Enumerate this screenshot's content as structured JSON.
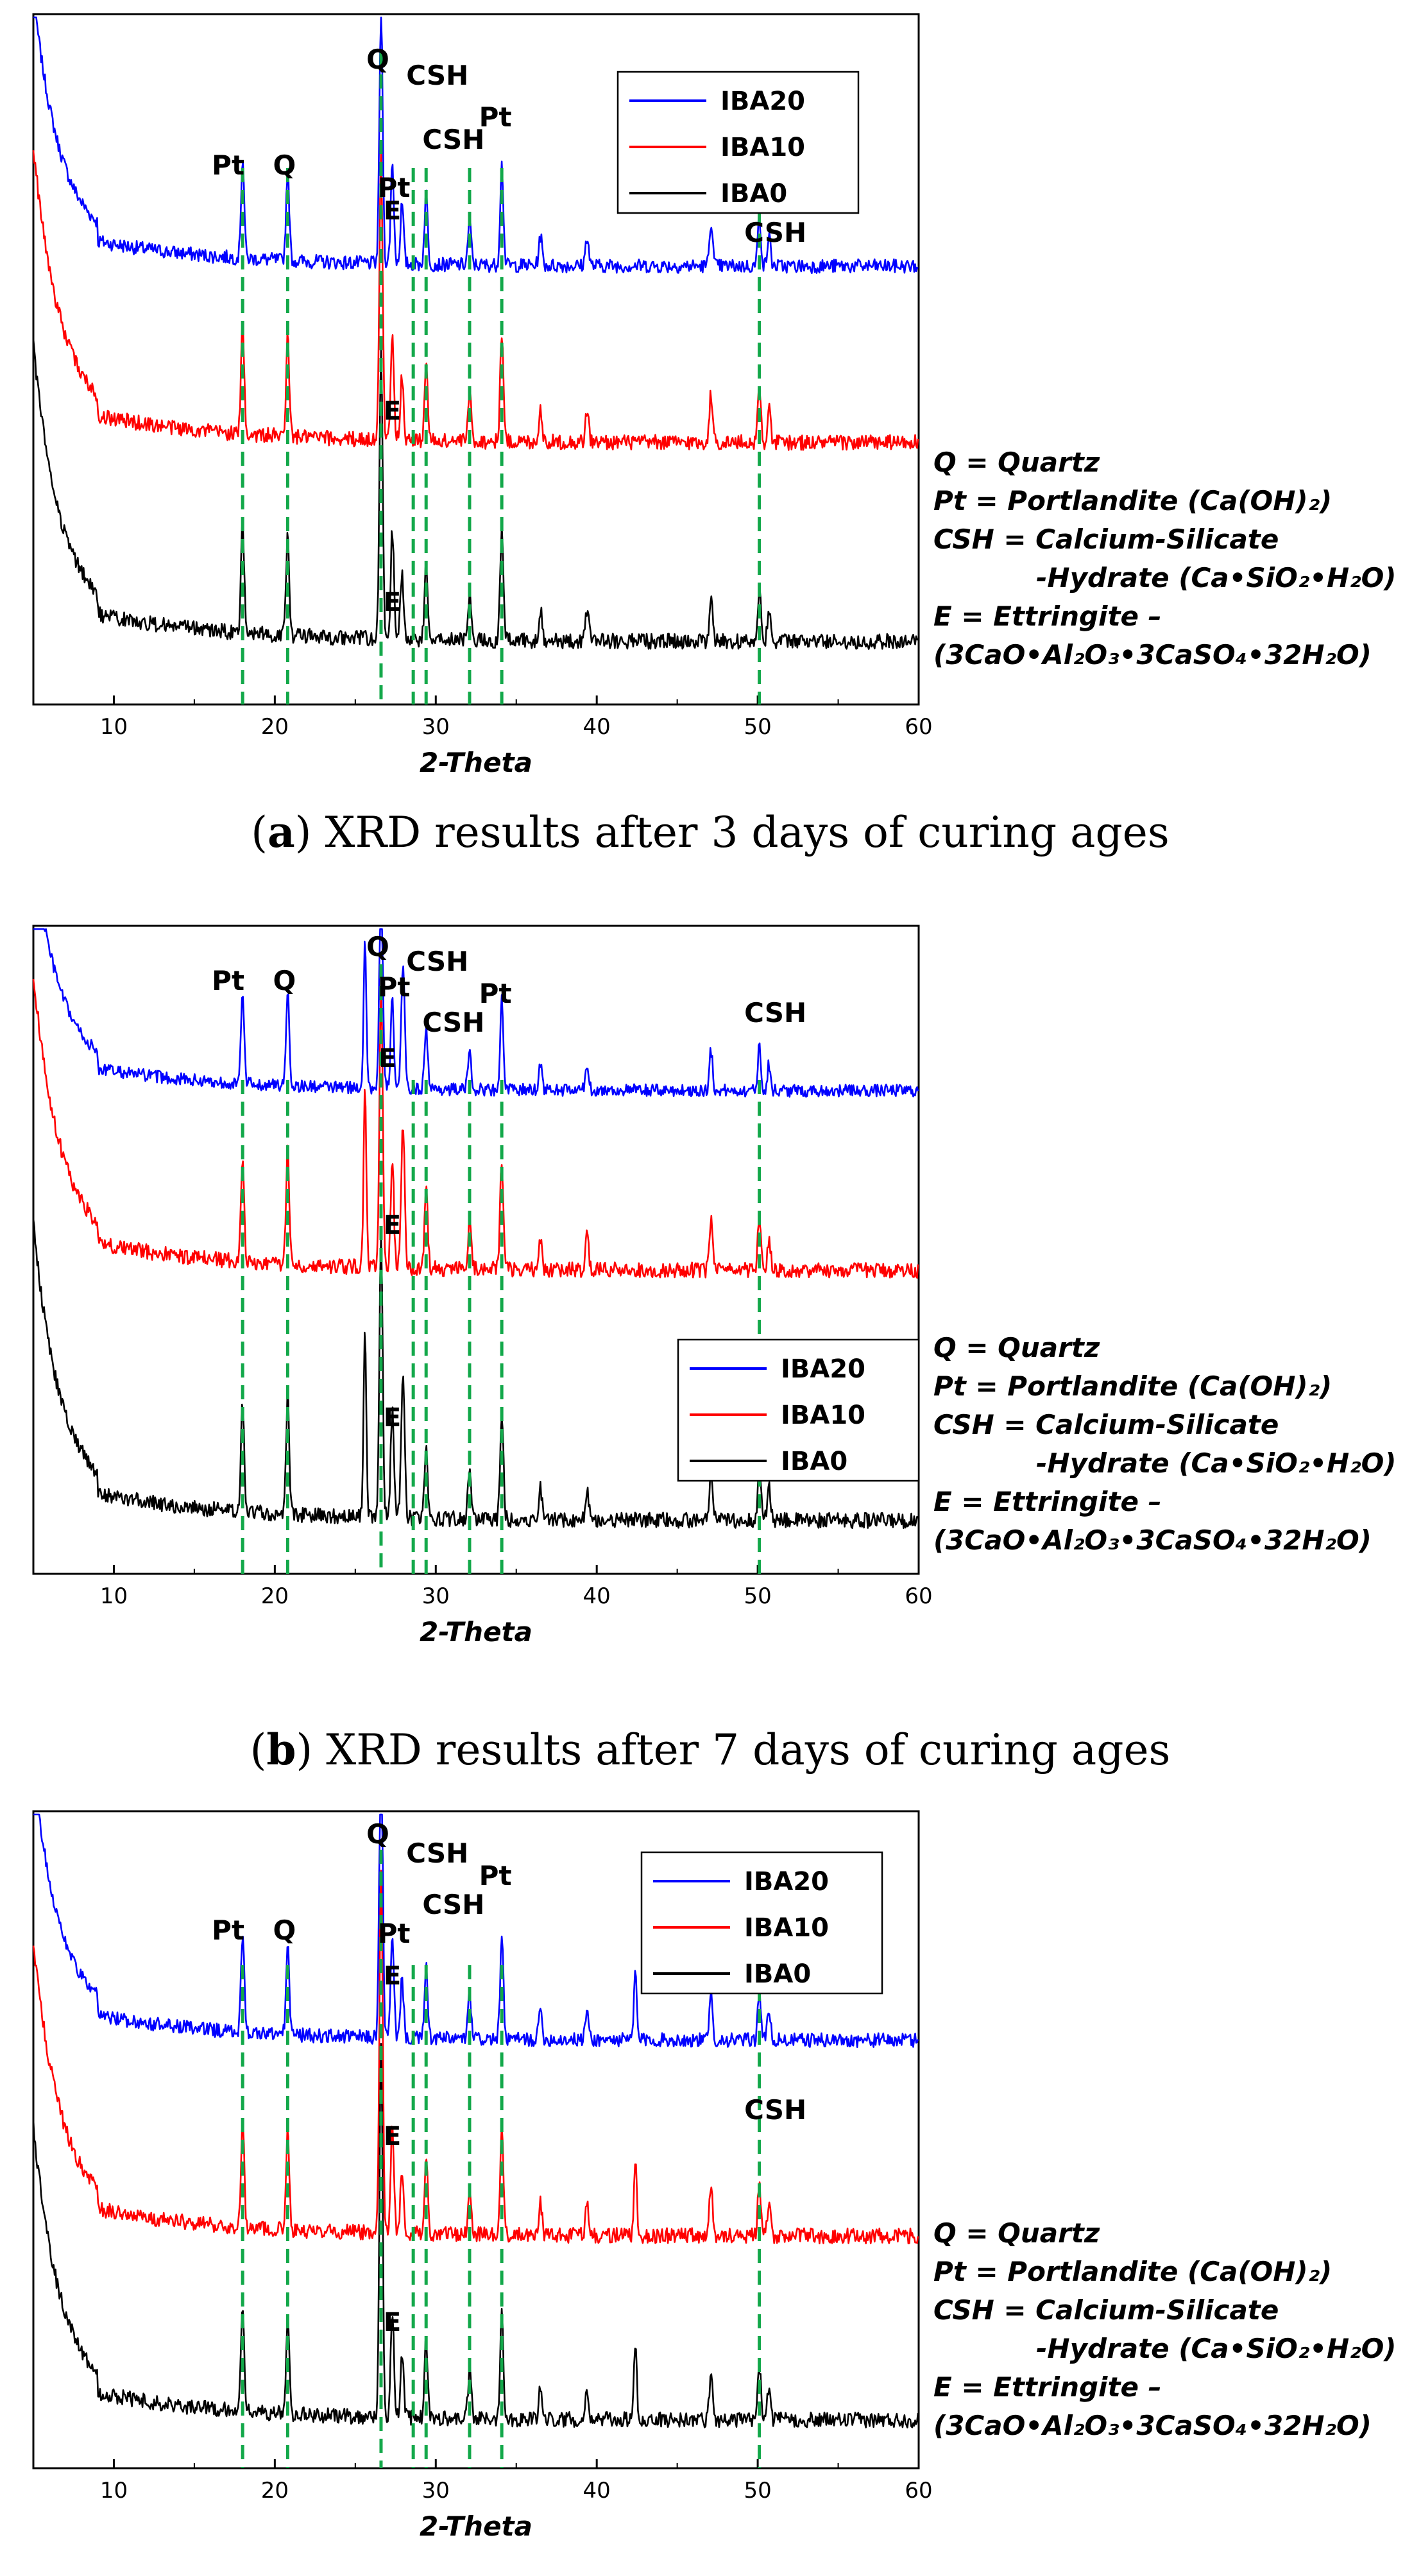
{
  "chart_data": [
    {
      "type": "line",
      "panel": "a",
      "caption": {
        "letter": "a",
        "text": " XRD results after 3 days of curing ages"
      },
      "xlabel": "2-Theta",
      "xlim": [
        5,
        60
      ],
      "xticks": [
        "10",
        "20",
        "30",
        "40",
        "50",
        "60"
      ],
      "series": [
        {
          "name": "IBA20",
          "color": "#0000ff"
        },
        {
          "name": "IBA10",
          "color": "#ff0000"
        },
        {
          "name": "IBA0",
          "color": "#000000"
        }
      ],
      "peak_lines": [
        18.0,
        20.8,
        26.6,
        28.6,
        29.4,
        32.1,
        34.1,
        50.1
      ],
      "peak_labels": [
        "Pt",
        "Q",
        "Q",
        "CSH",
        "Pt",
        "CSH",
        "Pt",
        "CSH",
        "E",
        "E",
        "E"
      ],
      "legend_position": "top-right",
      "notes": [
        "Q = Quartz",
        "Pt = Portlandite (Ca(OH)₂)",
        "CSH = Calcium-Silicate",
        "-Hydrate (Ca•SiO₂•H₂O)",
        "E = Ettringite –",
        "(3CaO•Al₂O₃•3CaSO₄•32H₂O)"
      ]
    },
    {
      "type": "line",
      "panel": "b",
      "caption": {
        "letter": "b",
        "text": " XRD results after 7 days of curing ages"
      },
      "xlabel": "2-Theta",
      "xlim": [
        5,
        60
      ],
      "xticks": [
        "10",
        "20",
        "30",
        "40",
        "50",
        "60"
      ],
      "series": [
        {
          "name": "IBA20",
          "color": "#0000ff"
        },
        {
          "name": "IBA10",
          "color": "#ff0000"
        },
        {
          "name": "IBA0",
          "color": "#000000"
        }
      ],
      "peak_lines": [
        18.0,
        20.8,
        26.6,
        28.6,
        29.4,
        32.1,
        34.1,
        50.1
      ],
      "peak_labels": [
        "Pt",
        "Q",
        "Q",
        "CSH",
        "Pt",
        "CSH",
        "Pt",
        "CSH",
        "E",
        "E",
        "E"
      ],
      "legend_position": "center-right",
      "notes": [
        "Q = Quartz",
        "Pt = Portlandite (Ca(OH)₂)",
        "CSH = Calcium-Silicate",
        "-Hydrate (Ca•SiO₂•H₂O)",
        "E = Ettringite –",
        "(3CaO•Al₂O₃•3CaSO₄•32H₂O)"
      ]
    },
    {
      "type": "line",
      "panel": "c",
      "xlabel": "2-Theta",
      "xlim": [
        5,
        60
      ],
      "xticks": [
        "10",
        "20",
        "30",
        "40",
        "50",
        "60"
      ],
      "series": [
        {
          "name": "IBA20",
          "color": "#0000ff"
        },
        {
          "name": "IBA10",
          "color": "#ff0000"
        },
        {
          "name": "IBA0",
          "color": "#000000"
        }
      ],
      "peak_lines": [
        18.0,
        20.8,
        26.6,
        28.6,
        29.4,
        32.1,
        34.1,
        50.1
      ],
      "peak_labels": [
        "Pt",
        "Q",
        "Q",
        "CSH",
        "Pt",
        "CSH",
        "Pt",
        "CSH",
        "E",
        "E",
        "E"
      ],
      "legend_position": "top-right",
      "notes": [
        "Q = Quartz",
        "Pt = Portlandite (Ca(OH)₂)",
        "CSH = Calcium-Silicate",
        "-Hydrate (Ca•SiO₂•H₂O)",
        "E = Ettringite –",
        "(3CaO•Al₂O₃•3CaSO₄•32H₂O)"
      ]
    }
  ]
}
